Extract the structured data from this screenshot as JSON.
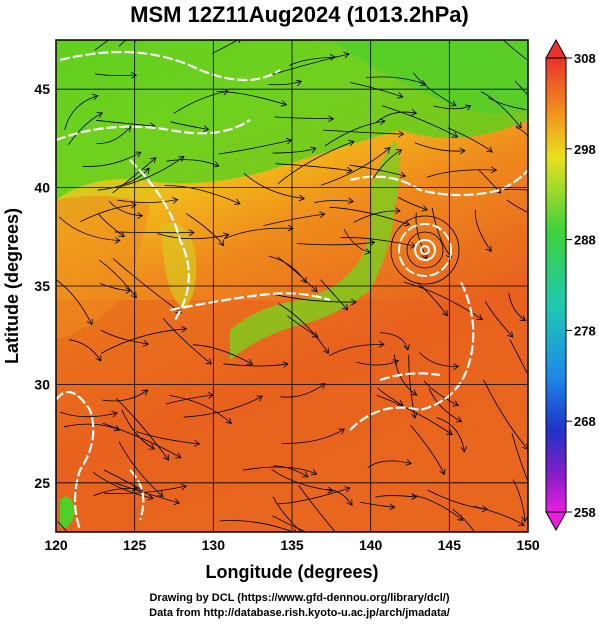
{
  "title": "MSM 12Z11Aug2024 (1013.2hPa)",
  "x_axis": {
    "label": "Longitude (degrees)",
    "ticks": [
      "120",
      "125",
      "130",
      "135",
      "140",
      "145",
      "150"
    ],
    "range": [
      120,
      150
    ]
  },
  "y_axis": {
    "label": "Latitude  (degrees)",
    "ticks": [
      "25",
      "30",
      "35",
      "40",
      "45"
    ],
    "range": [
      22.5,
      47.5
    ]
  },
  "colorbar": {
    "ticks": [
      "308",
      "298",
      "288",
      "278",
      "268",
      "258"
    ],
    "range": [
      258,
      308
    ]
  },
  "credits": {
    "line1": "Drawing by DCL (https://www.gfd-dennou.org/library/dcl/)",
    "line2": "Data from http://database.rish.kyoto-u.ac.jp/arch/jmadata/"
  },
  "colors": {
    "warm": "#e8621e",
    "mid": "#f2b81a",
    "cool": "#58c81e",
    "contour": "#ffffff",
    "streamline": "#000000"
  }
}
